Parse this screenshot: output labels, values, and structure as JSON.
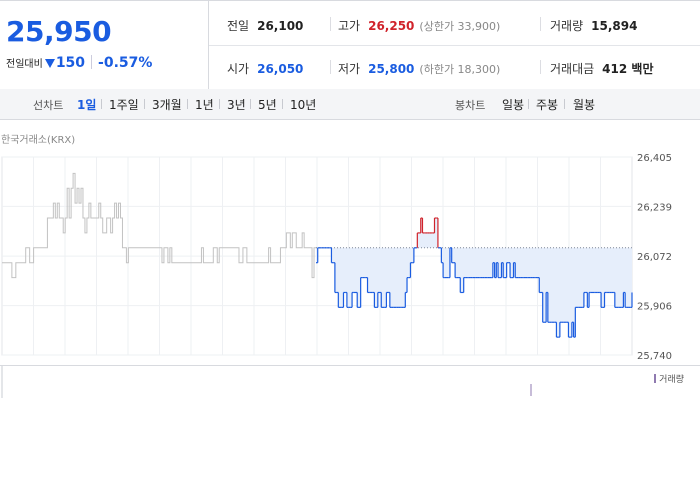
{
  "price": {
    "current": "25,950",
    "change_label": "전일대비",
    "change_amount": "150",
    "change_percent": "-0.57%"
  },
  "stats": {
    "prev_close": {
      "label": "전일",
      "value": "26,100"
    },
    "high": {
      "label": "고가",
      "value": "26,250",
      "sub": "(상한가 33,900)"
    },
    "volume": {
      "label": "거래량",
      "value": "15,894"
    },
    "open": {
      "label": "시가",
      "value": "26,050"
    },
    "low": {
      "label": "저가",
      "value": "25,800",
      "sub": "(하한가 18,300)"
    },
    "trade_value": {
      "label": "거래대금",
      "value": "412 백만"
    }
  },
  "toolbar": {
    "line_chart_label": "선차트",
    "line_ranges": [
      "1일",
      "1주일",
      "3개월",
      "1년",
      "3년",
      "5년",
      "10년"
    ],
    "active_range": "1일",
    "candle_chart_label": "봉차트",
    "candle_ranges": [
      "일봉",
      "주봉",
      "월봉"
    ]
  },
  "market_label": "한국거래소(KRX)",
  "volume_legend": "거래량",
  "colors": {
    "up": "#d0232b",
    "down": "#1a5ce0",
    "history_line": "#c2c2c2",
    "fill": "#e6eefb"
  },
  "chart_data": {
    "type": "line",
    "title": "",
    "xlabel": "",
    "ylabel": "",
    "ylim": [
      25740,
      26405
    ],
    "y_ticks": [
      "26,405",
      "26,239",
      "26,072",
      "25,906",
      "25,740"
    ],
    "y_tick_values": [
      26405,
      26239,
      26072,
      25906,
      25740
    ],
    "reference_value": 26100,
    "grid": true,
    "series": [
      {
        "role": "history",
        "values": [
          26050,
          26050,
          26050,
          26050,
          26050,
          26000,
          26000,
          26050,
          26050,
          26050,
          26050,
          26050,
          26100,
          26100,
          26050,
          26050,
          26100,
          26100,
          26100,
          26100,
          26100,
          26100,
          26100,
          26200,
          26200,
          26200,
          26250,
          26200,
          26250,
          26200,
          26200,
          26150,
          26200,
          26300,
          26200,
          26300,
          26350,
          26250,
          26300,
          26250,
          26300,
          26200,
          26150,
          26200,
          26250,
          26200,
          26200,
          26200,
          26200,
          26250,
          26200,
          26150,
          26150,
          26200,
          26200,
          26150,
          26200,
          26250,
          26200,
          26250,
          26200,
          26100,
          26100,
          26050,
          26100,
          26100,
          26100,
          26100,
          26100,
          26100,
          26100,
          26100,
          26100,
          26100,
          26100,
          26100,
          26100,
          26100,
          26100,
          26100,
          26100,
          26050,
          26100,
          26100,
          26050,
          26100,
          26050,
          26050,
          26050,
          26050,
          26050,
          26050,
          26050,
          26050,
          26050,
          26050,
          26050,
          26050,
          26050,
          26050,
          26050,
          26100,
          26050,
          26050,
          26050,
          26050,
          26050,
          26100,
          26100,
          26050,
          26100,
          26100,
          26100,
          26100,
          26100,
          26100,
          26100,
          26100,
          26100,
          26100,
          26050,
          26050,
          26100,
          26100,
          26050,
          26050,
          26050,
          26050,
          26050,
          26050,
          26050,
          26050,
          26050,
          26050,
          26050,
          26100,
          26050,
          26050,
          26050,
          26050,
          26050,
          26100,
          26100,
          26100,
          26150,
          26150,
          26100,
          26150,
          26150,
          26100,
          26100,
          26100,
          26150,
          26100,
          26100,
          26100,
          26100,
          26000,
          26100,
          26100
        ]
      },
      {
        "role": "today",
        "values": [
          26050,
          26100,
          26100,
          26100,
          26100,
          26100,
          26100,
          26100,
          26100,
          26050,
          26050,
          25950,
          25950,
          25900,
          25900,
          25900,
          25950,
          25950,
          25900,
          25900,
          25900,
          25950,
          25950,
          25950,
          25900,
          25900,
          26000,
          26000,
          26000,
          26000,
          25950,
          25950,
          25950,
          25950,
          25900,
          25900,
          25950,
          25950,
          25900,
          25900,
          25900,
          25950,
          25950,
          25900,
          25900,
          25900,
          25900,
          25900,
          25900,
          25900,
          25900,
          25900,
          25950,
          26000,
          26000,
          26050,
          26050,
          26100,
          26100,
          26150,
          26150,
          26200,
          26150,
          26150,
          26150,
          26150,
          26150,
          26150,
          26150,
          26200,
          26200,
          26100,
          26100,
          26050,
          26000,
          26000,
          26000,
          26000,
          26100,
          26050,
          26050,
          26000,
          26000,
          26000,
          25950,
          25950,
          26000,
          26000,
          26000,
          26000,
          26000,
          26000,
          26000,
          26000,
          26000,
          26000,
          26000,
          26000,
          26000,
          26000,
          26000,
          26000,
          26000,
          26050,
          26000,
          26050,
          26000,
          26000,
          26050,
          26000,
          26000,
          26050,
          26050,
          26000,
          26000,
          26050,
          26000,
          26000,
          26000,
          26000,
          26000,
          26000,
          26000,
          26000,
          26000,
          26000,
          26000,
          26000,
          26000,
          26000,
          25950,
          25950,
          25850,
          25850,
          25950,
          25850,
          25850,
          25850,
          25850,
          25850,
          25800,
          25800,
          25850,
          25850,
          25850,
          25850,
          25850,
          25800,
          25800,
          25850,
          25800,
          25900,
          25900,
          25900,
          25900,
          25900,
          25950,
          25950,
          25900,
          25950,
          25950,
          25950,
          25950,
          25950,
          25950,
          25950,
          25900,
          25900,
          25950,
          25950,
          25950,
          25950,
          25950,
          25950,
          25900,
          25900,
          25900,
          25900,
          25900,
          25950,
          25900,
          25900,
          25900,
          25900,
          25950
        ]
      }
    ],
    "volume_spikes": [
      1.0
    ]
  }
}
